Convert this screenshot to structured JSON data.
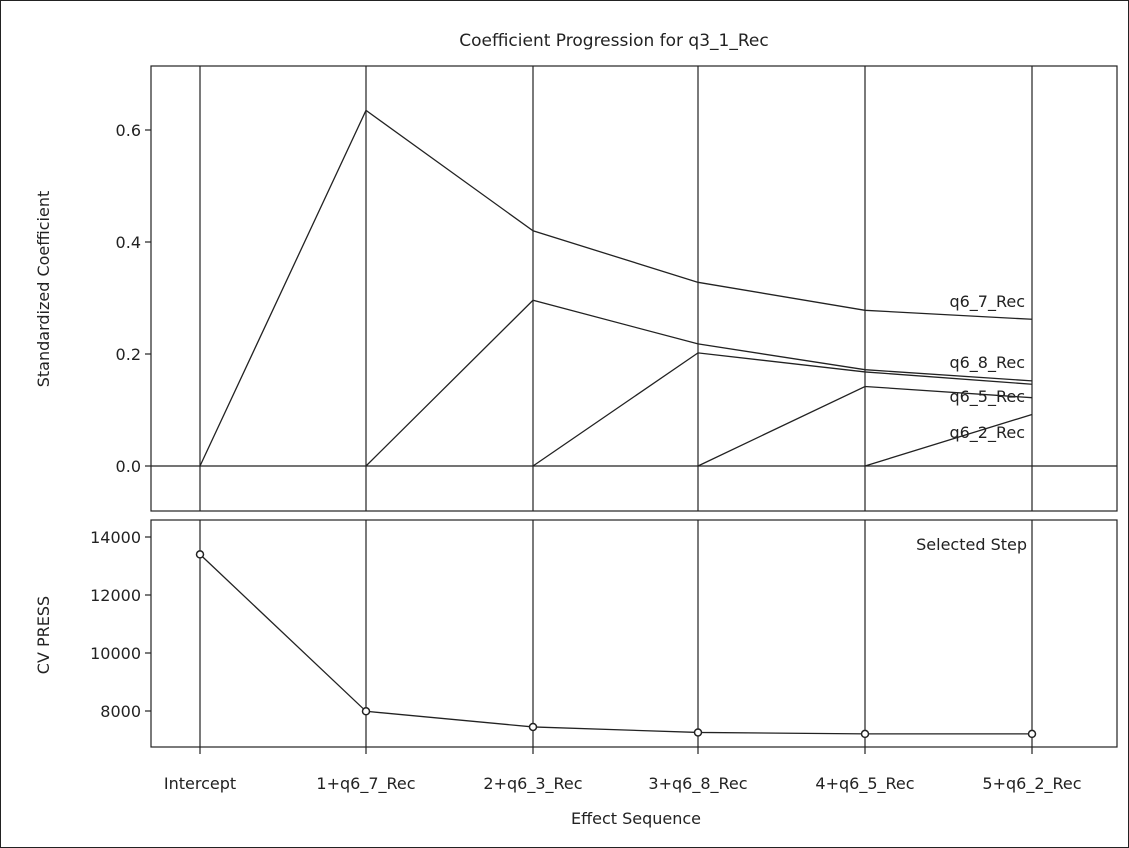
{
  "chart_data": [
    {
      "type": "line",
      "title": "Coefficient Progression for q3_1_Rec",
      "xlabel": "",
      "ylabel": "Standardized Coefficient",
      "categories": [
        "Intercept",
        "1+q6_7_Rec",
        "2+q6_3_Rec",
        "3+q6_8_Rec",
        "4+q6_5_Rec",
        "5+q6_2_Rec"
      ],
      "ylim": [
        -0.08,
        0.7
      ],
      "yticks": [
        0.0,
        0.2,
        0.4,
        0.6
      ],
      "ytick_labels": [
        "0.0",
        "0.2",
        "0.4",
        "0.6"
      ],
      "grid": "vertical lines at each step",
      "series": [
        {
          "name": "q6_7_Rec",
          "values": [
            0.0,
            0.635,
            0.42,
            0.328,
            0.278,
            0.262
          ]
        },
        {
          "name": "q6_3_Rec",
          "values": [
            null,
            0.0,
            0.296,
            0.218,
            0.172,
            0.152
          ]
        },
        {
          "name": "q6_8_Rec",
          "values": [
            null,
            null,
            0.0,
            0.202,
            0.168,
            0.146
          ]
        },
        {
          "name": "q6_5_Rec",
          "values": [
            null,
            null,
            null,
            0.0,
            0.142,
            0.122
          ]
        },
        {
          "name": "q6_2_Rec",
          "values": [
            null,
            null,
            null,
            null,
            0.0,
            0.092
          ]
        }
      ],
      "labels": [
        {
          "text": "q6_7_Rec",
          "series": "q6_7_Rec"
        },
        {
          "text": "q6_8_Rec",
          "series": "q6_8_Rec"
        },
        {
          "text": "q6_5_Rec",
          "series": "q6_5_Rec"
        },
        {
          "text": "q6_2_Rec",
          "series": "q6_2_Rec"
        }
      ]
    },
    {
      "type": "line",
      "title": "",
      "xlabel": "Effect Sequence",
      "ylabel": "CV PRESS",
      "categories": [
        "Intercept",
        "1+q6_7_Rec",
        "2+q6_3_Rec",
        "3+q6_8_Rec",
        "4+q6_5_Rec",
        "5+q6_2_Rec"
      ],
      "ylim": [
        6500,
        14400
      ],
      "yticks": [
        8000,
        10000,
        12000,
        14000
      ],
      "ytick_labels": [
        "8000",
        "10000",
        "12000",
        "14000"
      ],
      "grid": "vertical lines at each step",
      "series": [
        {
          "values": [
            13400,
            7990,
            7450,
            7260,
            7210,
            7210
          ],
          "markers": "circle"
        }
      ],
      "annotation": "Selected Step"
    }
  ]
}
